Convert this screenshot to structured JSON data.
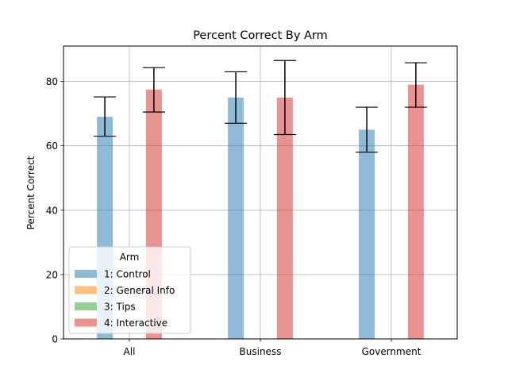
{
  "chart_data": {
    "type": "bar",
    "title": "Percent Correct By Arm",
    "xlabel": "",
    "ylabel": "Percent Correct",
    "categories": [
      "All",
      "Business",
      "Government"
    ],
    "ylim": [
      0,
      91
    ],
    "yticks": [
      0,
      20,
      40,
      60,
      80
    ],
    "grid": true,
    "legend": {
      "title": "Arm",
      "placement": "lower-left"
    },
    "series": [
      {
        "name": "1: Control",
        "color": "#1f77b4",
        "values": [
          69,
          75,
          65
        ],
        "err_low": [
          63,
          67,
          58
        ],
        "err_high": [
          75.2,
          83,
          72
        ]
      },
      {
        "name": "2: General Info",
        "color": "#ff7f0e",
        "values": [
          null,
          null,
          null
        ]
      },
      {
        "name": "3: Tips",
        "color": "#2ca02c",
        "values": [
          null,
          null,
          null
        ]
      },
      {
        "name": "4: Interactive",
        "color": "#d62728",
        "values": [
          77.5,
          75,
          79
        ],
        "err_low": [
          70.5,
          63.5,
          72
        ],
        "err_high": [
          84.3,
          86.5,
          85.8
        ]
      }
    ]
  }
}
